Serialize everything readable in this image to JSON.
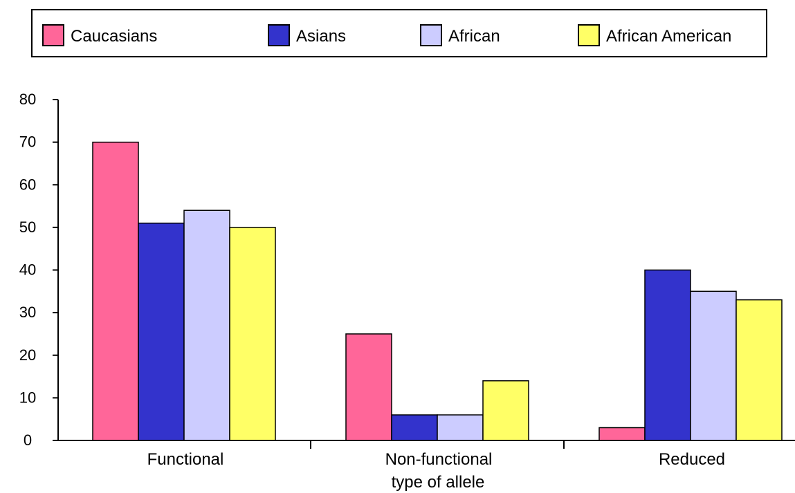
{
  "chart_data": {
    "type": "bar",
    "categories": [
      "Functional",
      "Non-functional",
      "Reduced"
    ],
    "series": [
      {
        "name": "Caucasians",
        "color": "#ff6699",
        "values": [
          70,
          25,
          3
        ]
      },
      {
        "name": "Asians",
        "color": "#3333cc",
        "values": [
          51,
          6,
          40
        ]
      },
      {
        "name": "African",
        "color": "#ccccff",
        "values": [
          54,
          6,
          35
        ]
      },
      {
        "name": "African American",
        "color": "#ffff66",
        "values": [
          50,
          14,
          33
        ]
      }
    ],
    "xlabel": "type of allele",
    "ylabel": "",
    "ylim": [
      0,
      80
    ],
    "yticks": [
      0,
      10,
      20,
      30,
      40,
      50,
      60,
      70,
      80
    ],
    "grid": false,
    "legend": "top"
  }
}
